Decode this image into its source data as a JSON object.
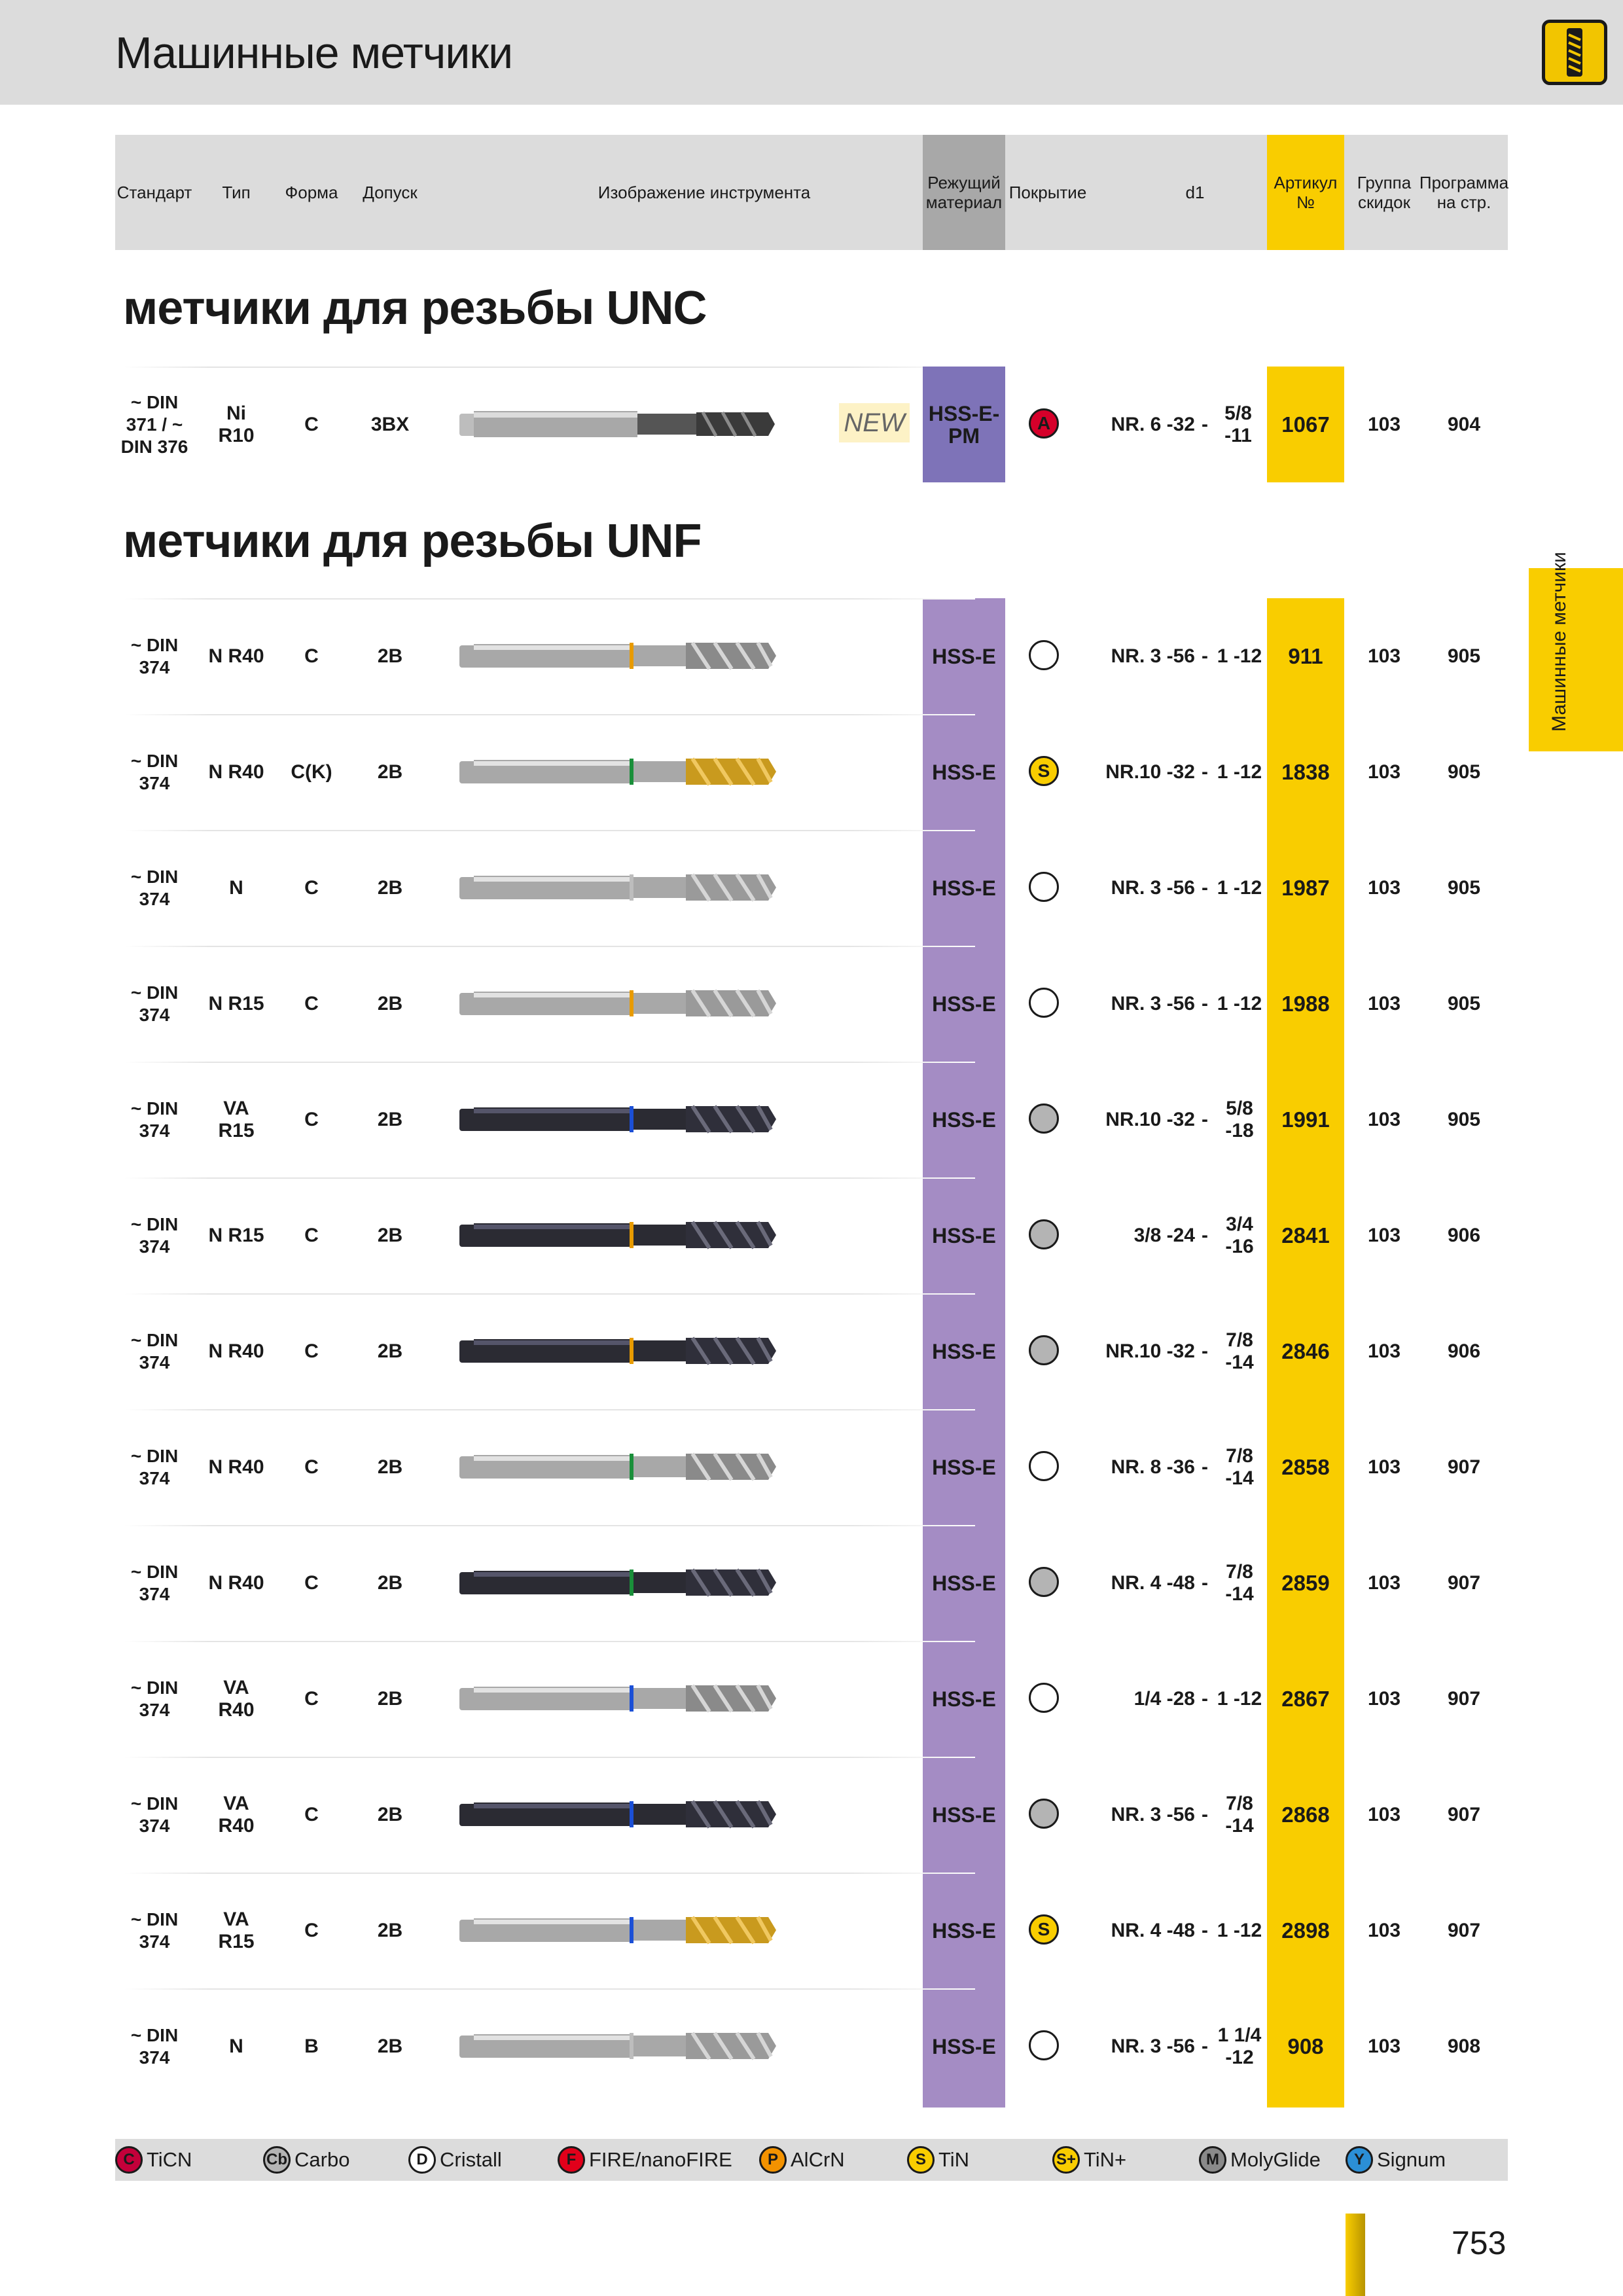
{
  "page": {
    "title": "Машинные метчики",
    "side_tab": "Машинные метчики",
    "page_number": "753"
  },
  "header": {
    "standard": "Стандарт",
    "type": "Тип",
    "form": "Форма",
    "tolerance": "Допуск",
    "image": "Изображение инструмента",
    "material": "Режущий материал",
    "coating": "Покрытие",
    "d1": "d1",
    "article": "Артикул №",
    "discount": "Группа скидок",
    "program": "Программа на стр."
  },
  "sections": {
    "unc": "метчики для  резьбы UNC",
    "unf": "метчики для  резьбы UNF"
  },
  "unc_row": {
    "standard": "~ DIN 371 / ~ DIN 376",
    "type": "Ni R10",
    "form": "C",
    "tolerance": "3BX",
    "badge": "NEW",
    "material": "HSS-E-PM",
    "coating_letter": "A",
    "d1_from": "NR. 6 -32",
    "dash": "-",
    "d1_to": "5/8 -11",
    "article": "1067",
    "discount": "103",
    "program": "904"
  },
  "unf_rows": [
    {
      "standard": "~ DIN 374",
      "type": "N R40",
      "form": "C",
      "tolerance": "2B",
      "material": "HSS-E",
      "coating": "plain",
      "coating_letter": "",
      "d1_from": "NR. 3 -56",
      "dash": "-",
      "d1_to": "1 -12",
      "article": "911",
      "discount": "103",
      "program": "905",
      "ring": "#e89b00",
      "tip": "#8a8a8a",
      "dark": false
    },
    {
      "standard": "~ DIN 374",
      "type": "N R40",
      "form": "C(K)",
      "tolerance": "2B",
      "material": "HSS-E",
      "coating": "s",
      "coating_letter": "S",
      "d1_from": "NR.10 -32",
      "dash": "-",
      "d1_to": "1 -12",
      "article": "1838",
      "discount": "103",
      "program": "905",
      "ring": "#1a8f3a",
      "tip": "#c99a1e",
      "dark": false
    },
    {
      "standard": "~ DIN 374",
      "type": "N",
      "form": "C",
      "tolerance": "2B",
      "material": "HSS-E",
      "coating": "plain",
      "coating_letter": "",
      "d1_from": "NR. 3 -56",
      "dash": "-",
      "d1_to": "1 -12",
      "article": "1987",
      "discount": "103",
      "program": "905",
      "ring": "#bdbdbd",
      "tip": "#9a9a9a",
      "dark": false
    },
    {
      "standard": "~ DIN 374",
      "type": "N R15",
      "form": "C",
      "tolerance": "2B",
      "material": "HSS-E",
      "coating": "plain",
      "coating_letter": "",
      "d1_from": "NR. 3 -56",
      "dash": "-",
      "d1_to": "1 -12",
      "article": "1988",
      "discount": "103",
      "program": "905",
      "ring": "#e89b00",
      "tip": "#9a9a9a",
      "dark": false
    },
    {
      "standard": "~ DIN 374",
      "type": "VA R15",
      "form": "C",
      "tolerance": "2B",
      "material": "HSS-E",
      "coating": "grey",
      "coating_letter": "",
      "d1_from": "NR.10 -32",
      "dash": "-",
      "d1_to": "5/8 -18",
      "article": "1991",
      "discount": "103",
      "program": "905",
      "ring": "#1b4fd6",
      "tip": "#2f2f3a",
      "dark": true
    },
    {
      "standard": "~ DIN 374",
      "type": "N R15",
      "form": "C",
      "tolerance": "2B",
      "material": "HSS-E",
      "coating": "grey",
      "coating_letter": "",
      "d1_from": "3/8 -24",
      "dash": "-",
      "d1_to": "3/4 -16",
      "article": "2841",
      "discount": "103",
      "program": "906",
      "ring": "#e89b00",
      "tip": "#2f2f3a",
      "dark": true
    },
    {
      "standard": "~ DIN 374",
      "type": "N R40",
      "form": "C",
      "tolerance": "2B",
      "material": "HSS-E",
      "coating": "grey",
      "coating_letter": "",
      "d1_from": "NR.10 -32",
      "dash": "-",
      "d1_to": "7/8 -14",
      "article": "2846",
      "discount": "103",
      "program": "906",
      "ring": "#e89b00",
      "tip": "#2f2f3a",
      "dark": true
    },
    {
      "standard": "~ DIN 374",
      "type": "N R40",
      "form": "C",
      "tolerance": "2B",
      "material": "HSS-E",
      "coating": "plain",
      "coating_letter": "",
      "d1_from": "NR. 8 -36",
      "dash": "-",
      "d1_to": "7/8 -14",
      "article": "2858",
      "discount": "103",
      "program": "907",
      "ring": "#1a8f3a",
      "tip": "#8a8a8a",
      "dark": false
    },
    {
      "standard": "~ DIN 374",
      "type": "N R40",
      "form": "C",
      "tolerance": "2B",
      "material": "HSS-E",
      "coating": "grey",
      "coating_letter": "",
      "d1_from": "NR. 4 -48",
      "dash": "-",
      "d1_to": "7/8 -14",
      "article": "2859",
      "discount": "103",
      "program": "907",
      "ring": "#1a8f3a",
      "tip": "#2f2f3a",
      "dark": true
    },
    {
      "standard": "~ DIN 374",
      "type": "VA R40",
      "form": "C",
      "tolerance": "2B",
      "material": "HSS-E",
      "coating": "plain",
      "coating_letter": "",
      "d1_from": "1/4 -28",
      "dash": "-",
      "d1_to": "1 -12",
      "article": "2867",
      "discount": "103",
      "program": "907",
      "ring": "#1b4fd6",
      "tip": "#8a8a8a",
      "dark": false
    },
    {
      "standard": "~ DIN 374",
      "type": "VA R40",
      "form": "C",
      "tolerance": "2B",
      "material": "HSS-E",
      "coating": "grey",
      "coating_letter": "",
      "d1_from": "NR. 3 -56",
      "dash": "-",
      "d1_to": "7/8 -14",
      "article": "2868",
      "discount": "103",
      "program": "907",
      "ring": "#1b4fd6",
      "tip": "#2f2f3a",
      "dark": true
    },
    {
      "standard": "~ DIN 374",
      "type": "VA R15",
      "form": "C",
      "tolerance": "2B",
      "material": "HSS-E",
      "coating": "s",
      "coating_letter": "S",
      "d1_from": "NR. 4 -48",
      "dash": "-",
      "d1_to": "1 -12",
      "article": "2898",
      "discount": "103",
      "program": "907",
      "ring": "#1b4fd6",
      "tip": "#c99a1e",
      "dark": false
    },
    {
      "standard": "~ DIN 374",
      "type": "N",
      "form": "B",
      "tolerance": "2B",
      "material": "HSS-E",
      "coating": "plain",
      "coating_letter": "",
      "d1_from": "NR. 3 -56",
      "dash": "-",
      "d1_to": "1 1/4 -12",
      "article": "908",
      "discount": "103",
      "program": "908",
      "ring": "#bdbdbd",
      "tip": "#9a9a9a",
      "dark": false
    }
  ],
  "legend": [
    {
      "letter": "C",
      "label": "TiCN",
      "color": "#c4003a"
    },
    {
      "letter": "Cb",
      "label": "Carbo",
      "color": "#b4b4b4"
    },
    {
      "letter": "D",
      "label": "Cristall",
      "color": "#ffffff"
    },
    {
      "letter": "F",
      "label": "FIRE/nanoFIRE",
      "color": "#e2001a"
    },
    {
      "letter": "P",
      "label": "AlCrN",
      "color": "#f39200"
    },
    {
      "letter": "S",
      "label": "TiN",
      "color": "#f9cd00"
    },
    {
      "letter": "S+",
      "label": "TiN+",
      "color": "#f9cd00"
    },
    {
      "letter": "M",
      "label": "MolyGlide",
      "color": "#8a8a8a"
    },
    {
      "letter": "Y",
      "label": "Signum",
      "color": "#2b8fd6"
    }
  ]
}
